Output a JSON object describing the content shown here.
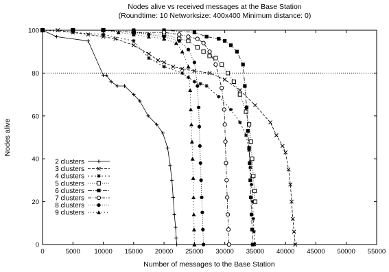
{
  "chart_data": {
    "type": "line",
    "title": "Nodes alive vs received messages at the Base Station",
    "subtitle": "(Roundtime: 10 Networksize: 400x400 Minimum distance: 0)",
    "xlabel": "Number of messages to the Base Station",
    "ylabel": "Nodes alive",
    "xlim": [
      0,
      55000
    ],
    "ylim": [
      0,
      100
    ],
    "xticks": [
      "0",
      "5000",
      "10000",
      "15000",
      "20000",
      "25000",
      "30000",
      "35000",
      "40000",
      "45000",
      "50000",
      "55000"
    ],
    "yticks": [
      "0",
      "20",
      "40",
      "60",
      "80",
      "100"
    ],
    "reference_line": {
      "y": 80,
      "style": "dotted"
    },
    "grid": false,
    "legend_position": "bottom-left",
    "series": [
      {
        "name": "2 clusters",
        "marker": "plus",
        "dash": "",
        "points": [
          [
            0,
            100
          ],
          [
            2300,
            97
          ],
          [
            7500,
            95
          ],
          [
            10000,
            79
          ],
          [
            10500,
            79
          ],
          [
            11300,
            76
          ],
          [
            12300,
            74
          ],
          [
            13500,
            74
          ],
          [
            15000,
            70
          ],
          [
            16000,
            67
          ],
          [
            17400,
            60
          ],
          [
            18800,
            56
          ],
          [
            19800,
            52
          ],
          [
            20600,
            45
          ],
          [
            21000,
            37
          ],
          [
            21300,
            30
          ],
          [
            21500,
            22
          ],
          [
            21700,
            14
          ],
          [
            21900,
            8
          ],
          [
            22000,
            3
          ],
          [
            22100,
            0
          ]
        ]
      },
      {
        "name": "3 clusters",
        "marker": "x",
        "dash": "4,2",
        "points": [
          [
            0,
            100
          ],
          [
            2500,
            100
          ],
          [
            5000,
            99
          ],
          [
            7500,
            98
          ],
          [
            10000,
            97
          ],
          [
            12000,
            96
          ],
          [
            15000,
            93
          ],
          [
            17500,
            89
          ],
          [
            19000,
            86
          ],
          [
            20000,
            85
          ],
          [
            21500,
            83
          ],
          [
            23000,
            82
          ],
          [
            25000,
            81
          ],
          [
            27500,
            80
          ],
          [
            30000,
            77
          ],
          [
            32500,
            72
          ],
          [
            35000,
            65
          ],
          [
            37500,
            57
          ],
          [
            38500,
            51
          ],
          [
            39500,
            46
          ],
          [
            40000,
            43
          ],
          [
            40500,
            35
          ],
          [
            40800,
            28
          ],
          [
            41000,
            20
          ],
          [
            41200,
            12
          ],
          [
            41400,
            6
          ],
          [
            41600,
            0
          ]
        ]
      },
      {
        "name": "4 clusters",
        "marker": "star",
        "dash": "2,3",
        "points": [
          [
            0,
            100
          ],
          [
            5000,
            99
          ],
          [
            10000,
            98
          ],
          [
            15000,
            95
          ],
          [
            17500,
            87
          ],
          [
            20000,
            83
          ],
          [
            23000,
            80
          ],
          [
            24000,
            78
          ],
          [
            25000,
            76
          ],
          [
            26000,
            75
          ],
          [
            27000,
            74
          ],
          [
            29000,
            69
          ],
          [
            31000,
            63
          ],
          [
            32500,
            57
          ],
          [
            33500,
            51
          ],
          [
            34000,
            44
          ],
          [
            34200,
            36
          ],
          [
            34400,
            28
          ],
          [
            34600,
            20
          ],
          [
            34700,
            12
          ],
          [
            34800,
            6
          ],
          [
            34900,
            0
          ]
        ]
      },
      {
        "name": "5 clusters",
        "marker": "open-square",
        "dash": "1,2",
        "points": [
          [
            0,
            100
          ],
          [
            5000,
            100
          ],
          [
            10000,
            100
          ],
          [
            15000,
            99
          ],
          [
            20000,
            98
          ],
          [
            22500,
            96
          ],
          [
            24000,
            95
          ],
          [
            25500,
            92
          ],
          [
            26500,
            90
          ],
          [
            27500,
            88
          ],
          [
            28500,
            87
          ],
          [
            29500,
            84
          ],
          [
            30500,
            80
          ],
          [
            31500,
            76
          ],
          [
            32500,
            70
          ],
          [
            33500,
            62
          ],
          [
            34000,
            56
          ],
          [
            34300,
            48
          ],
          [
            34500,
            40
          ],
          [
            34700,
            32
          ],
          [
            34900,
            25
          ],
          [
            35000,
            20
          ]
        ]
      },
      {
        "name": "6 clusters",
        "marker": "filled-square",
        "dash": "6,2,1,2",
        "points": [
          [
            0,
            100
          ],
          [
            5000,
            100
          ],
          [
            10000,
            100
          ],
          [
            15000,
            100
          ],
          [
            20000,
            100
          ],
          [
            25000,
            99
          ],
          [
            27000,
            97
          ],
          [
            29000,
            96
          ],
          [
            30000,
            95
          ],
          [
            31000,
            93
          ],
          [
            32000,
            90
          ],
          [
            33000,
            84
          ],
          [
            33300,
            74
          ],
          [
            33600,
            64
          ],
          [
            33800,
            53
          ],
          [
            34000,
            45
          ],
          [
            34100,
            38
          ],
          [
            34200,
            30
          ],
          [
            34300,
            22
          ],
          [
            34400,
            14
          ],
          [
            34500,
            7
          ],
          [
            34600,
            0
          ]
        ]
      },
      {
        "name": "7 clusters",
        "marker": "open-circle",
        "dash": "5,2,1,2",
        "points": [
          [
            0,
            100
          ],
          [
            5000,
            100
          ],
          [
            10000,
            100
          ],
          [
            15000,
            99
          ],
          [
            20000,
            99
          ],
          [
            22500,
            98
          ],
          [
            24000,
            97
          ],
          [
            25500,
            96
          ],
          [
            26500,
            94
          ],
          [
            27500,
            90
          ],
          [
            28500,
            84
          ],
          [
            29500,
            73
          ],
          [
            29900,
            63
          ],
          [
            30000,
            56
          ],
          [
            30100,
            48
          ],
          [
            30200,
            38
          ],
          [
            30300,
            30
          ],
          [
            30400,
            22
          ],
          [
            30500,
            14
          ],
          [
            30600,
            7
          ],
          [
            30700,
            0
          ]
        ]
      },
      {
        "name": "8 clusters",
        "marker": "filled-circle",
        "dash": "1,2",
        "points": [
          [
            0,
            100
          ],
          [
            5000,
            100
          ],
          [
            10000,
            100
          ],
          [
            15000,
            99
          ],
          [
            17500,
            98
          ],
          [
            20000,
            97
          ],
          [
            22500,
            95
          ],
          [
            24000,
            91
          ],
          [
            25000,
            85
          ],
          [
            25500,
            74
          ],
          [
            25700,
            64
          ],
          [
            25800,
            55
          ],
          [
            25900,
            46
          ],
          [
            26000,
            38
          ],
          [
            26100,
            30
          ],
          [
            26200,
            22
          ],
          [
            26300,
            15
          ],
          [
            26400,
            7
          ],
          [
            26500,
            0
          ]
        ]
      },
      {
        "name": "9 clusters",
        "marker": "filled-triangle",
        "dash": "1,3",
        "points": [
          [
            0,
            100
          ],
          [
            5000,
            100
          ],
          [
            10000,
            100
          ],
          [
            12500,
            99
          ],
          [
            15000,
            98
          ],
          [
            17500,
            97
          ],
          [
            20000,
            96
          ],
          [
            22000,
            94
          ],
          [
            23000,
            90
          ],
          [
            24000,
            83
          ],
          [
            24300,
            72
          ],
          [
            24400,
            63
          ],
          [
            24500,
            56
          ],
          [
            24600,
            48
          ],
          [
            24700,
            40
          ],
          [
            24800,
            31
          ],
          [
            24850,
            22
          ],
          [
            24900,
            14
          ],
          [
            24950,
            7
          ],
          [
            25000,
            0
          ]
        ]
      }
    ]
  }
}
